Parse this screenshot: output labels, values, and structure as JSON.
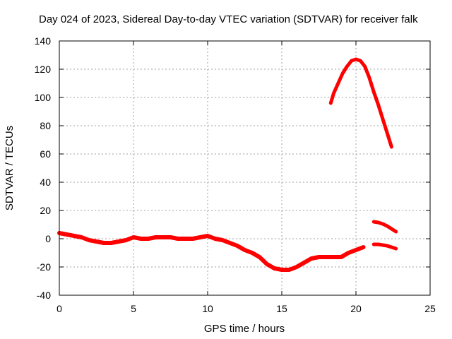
{
  "chart_data": {
    "type": "line",
    "title": "Day 024 of 2023, Sidereal Day-to-day VTEC variation (SDTVAR) for receiver falk",
    "xlabel": "GPS time / hours",
    "ylabel": "SDTVAR / TECUs",
    "xlim": [
      0,
      25
    ],
    "ylim": [
      -40,
      140
    ],
    "xticks": [
      0,
      5,
      10,
      15,
      20,
      25
    ],
    "yticks": [
      -40,
      -20,
      0,
      20,
      40,
      60,
      80,
      100,
      120,
      140
    ],
    "grid": true,
    "legend": "none",
    "series_color": "#ff0000",
    "series": [
      {
        "name": "main-trace",
        "x": [
          0,
          0.5,
          1,
          1.5,
          2,
          2.5,
          3,
          3.5,
          4,
          4.5,
          5,
          5.5,
          6,
          6.5,
          7,
          7.5,
          8,
          8.5,
          9,
          9.5,
          10,
          10.5,
          11,
          11.5,
          12,
          12.5,
          13,
          13.5,
          14,
          14.5,
          15,
          15.5,
          16,
          16.5,
          17,
          17.5,
          18,
          18.5,
          19,
          19.5,
          20,
          20.5
        ],
        "values": [
          4,
          3,
          2,
          1,
          -1,
          -2,
          -3,
          -3,
          -2,
          -1,
          1,
          0,
          0,
          1,
          1,
          1,
          0,
          0,
          0,
          1,
          2,
          0,
          -1,
          -3,
          -5,
          -8,
          -10,
          -13,
          -18,
          -21,
          -22,
          -22,
          -20,
          -17,
          -14,
          -13,
          -13,
          -13,
          -13,
          -10,
          -8,
          -6
        ]
      },
      {
        "name": "peak-arc",
        "x": [
          18.3,
          18.5,
          18.8,
          19.1,
          19.4,
          19.7,
          20.0,
          20.3,
          20.6,
          20.9,
          21.2,
          21.5,
          21.8,
          22.1,
          22.4
        ],
        "values": [
          96,
          103,
          110,
          117,
          122,
          126,
          127,
          126,
          122,
          114,
          104,
          95,
          85,
          75,
          65
        ]
      },
      {
        "name": "upper-tail",
        "x": [
          21.2,
          21.5,
          21.8,
          22.1,
          22.4,
          22.7
        ],
        "values": [
          12,
          11.5,
          10.5,
          9,
          7,
          5
        ]
      },
      {
        "name": "lower-tail",
        "x": [
          21.2,
          21.5,
          21.8,
          22.1,
          22.4,
          22.7
        ],
        "values": [
          -4,
          -4,
          -4.5,
          -5,
          -6,
          -7
        ]
      }
    ]
  }
}
